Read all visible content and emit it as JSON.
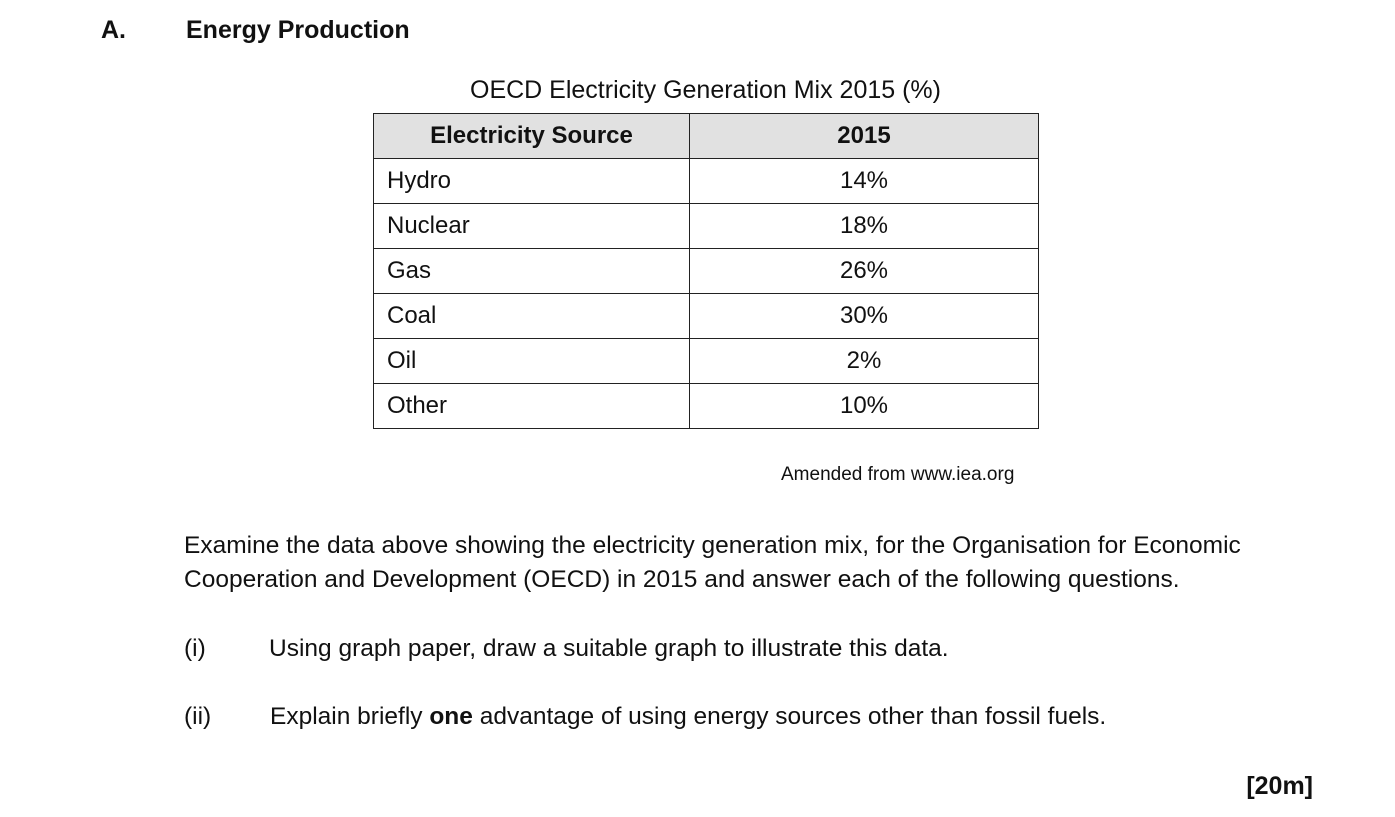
{
  "section": {
    "letter": "A.",
    "title": "Energy Production"
  },
  "table": {
    "caption": "OECD Electricity Generation Mix 2015 (%)",
    "headers": [
      "Electricity Source",
      "2015"
    ],
    "rows": [
      {
        "source": "Hydro",
        "value": "14%"
      },
      {
        "source": "Nuclear",
        "value": "18%"
      },
      {
        "source": "Gas",
        "value": "26%"
      },
      {
        "source": "Coal",
        "value": "30%"
      },
      {
        "source": "Oil",
        "value": "2%"
      },
      {
        "source": "Other",
        "value": "10%"
      }
    ],
    "source_note": "Amended from www.iea.org",
    "header_bg": "#e1e1e1"
  },
  "instructions": "Examine the data above showing the electricity generation mix, for the Organisation for Economic Cooperation and Development (OECD) in 2015 and answer each of the following questions.",
  "questions": [
    {
      "number": "(i)",
      "text": "Using graph paper, draw a suitable graph to illustrate this data."
    },
    {
      "number": "(ii)",
      "text_before": "Explain briefly ",
      "text_bold": "one",
      "text_after": " advantage of using energy sources other than fossil fuels."
    }
  ],
  "marks": "[20m]"
}
